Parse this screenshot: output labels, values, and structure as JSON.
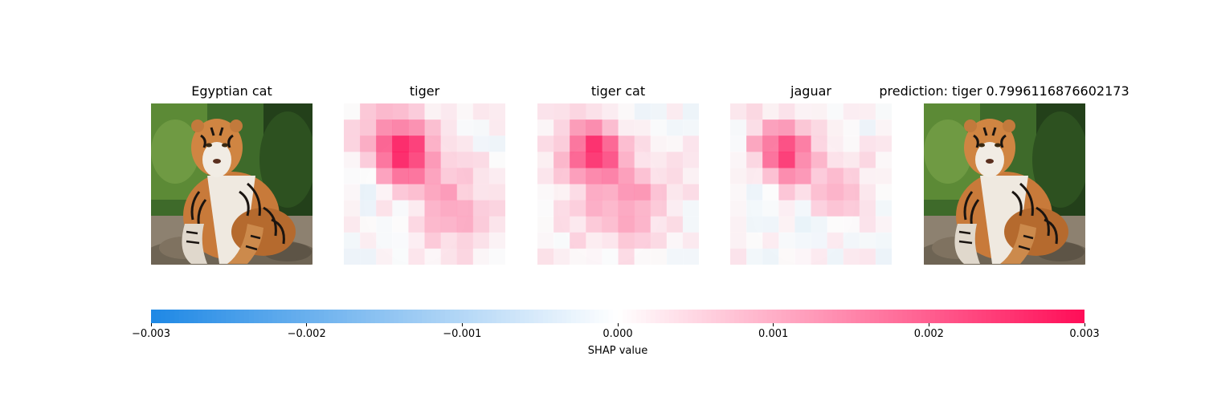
{
  "chart_data": {
    "type": "heatmap",
    "panels": [
      {
        "title": "Egyptian cat",
        "kind": "image"
      },
      {
        "title": "tiger",
        "kind": "shap",
        "hotspots": [
          {
            "cx": 3.6,
            "cy": 3.0,
            "r": 1.4,
            "v": 0.0031
          },
          {
            "cx": 6.4,
            "cy": 6.5,
            "r": 1.8,
            "v": 0.0012
          },
          {
            "cx": 2.0,
            "cy": 1.2,
            "r": 1.2,
            "v": 0.0004
          },
          {
            "cx": 1.5,
            "cy": 4.8,
            "r": 1.2,
            "v": -0.0005
          },
          {
            "cx": 4.2,
            "cy": 6.8,
            "r": 0.8,
            "v": -0.0005
          }
        ]
      },
      {
        "title": "tiger cat",
        "kind": "shap",
        "hotspots": [
          {
            "cx": 3.4,
            "cy": 3.0,
            "r": 1.2,
            "v": 0.003
          },
          {
            "cx": 6.0,
            "cy": 6.0,
            "r": 1.6,
            "v": 0.0013
          },
          {
            "cx": 3.0,
            "cy": 6.8,
            "r": 1.6,
            "v": 0.0004
          }
        ]
      },
      {
        "title": "jaguar",
        "kind": "shap",
        "hotspots": [
          {
            "cx": 3.2,
            "cy": 3.0,
            "r": 1.3,
            "v": 0.0027
          },
          {
            "cx": 6.0,
            "cy": 5.6,
            "r": 1.4,
            "v": 0.0009
          },
          {
            "cx": 1.6,
            "cy": 4.2,
            "r": 1.2,
            "v": -0.0004
          },
          {
            "cx": 4.8,
            "cy": 7.0,
            "r": 1.0,
            "v": -0.0006
          },
          {
            "cx": 7.5,
            "cy": 4.0,
            "r": 1.0,
            "v": 0.0003
          }
        ]
      },
      {
        "title": "prediction: tiger 0.7996116876602173",
        "kind": "image"
      }
    ],
    "grid_size": 10,
    "colorbar": {
      "min": -0.003,
      "max": 0.003,
      "ticks": [
        -0.003,
        -0.002,
        -0.001,
        0.0,
        0.001,
        0.002,
        0.003
      ],
      "tick_labels": [
        "−0.003",
        "−0.002",
        "−0.001",
        "0.000",
        "0.001",
        "0.002",
        "0.003"
      ],
      "label": "SHAP value",
      "negative_color": "#1e88e5",
      "positive_color": "#ff0d57"
    }
  }
}
